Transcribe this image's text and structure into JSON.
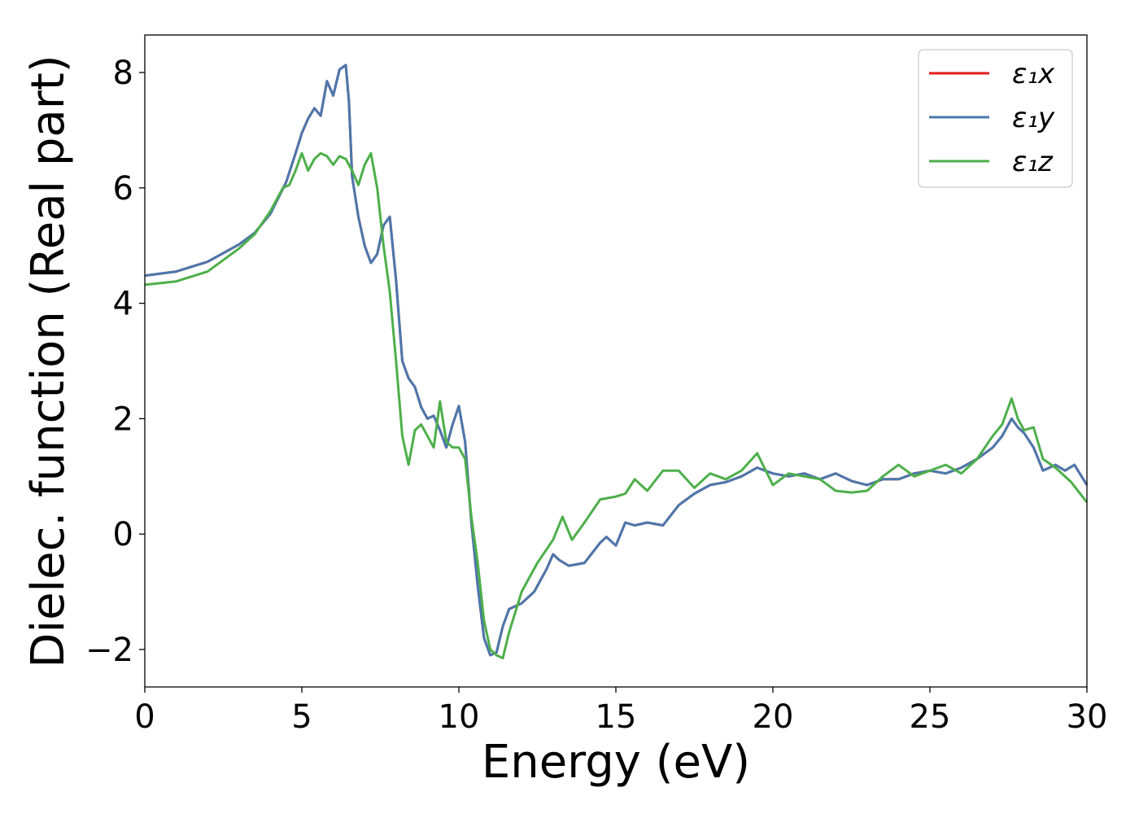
{
  "chart_data": {
    "type": "line",
    "title": "",
    "xlabel": "Energy (eV)",
    "ylabel": "Dielec. function (Real part)",
    "xlim": [
      0,
      30
    ],
    "ylim": [
      -2.65,
      8.65
    ],
    "xticks": [
      0,
      5,
      10,
      15,
      20,
      25,
      30
    ],
    "xtick_labels": [
      "0",
      "5",
      "10",
      "15",
      "20",
      "25",
      "30"
    ],
    "yticks": [
      -2,
      0,
      2,
      4,
      6,
      8
    ],
    "ytick_labels": [
      "−2",
      "0",
      "2",
      "4",
      "6",
      "8"
    ],
    "grid": false,
    "legend_position": "top-right",
    "series": [
      {
        "name": "ε₁x",
        "color": "#e41a1c",
        "x": [
          0,
          1,
          2,
          3,
          3.5,
          4,
          4.5,
          4.8,
          5,
          5.2,
          5.4,
          5.6,
          5.8,
          6.0,
          6.2,
          6.4,
          6.5,
          6.6,
          6.8,
          7.0,
          7.2,
          7.4,
          7.6,
          7.8,
          8.0,
          8.2,
          8.4,
          8.6,
          8.8,
          9.0,
          9.2,
          9.4,
          9.6,
          9.8,
          10.0,
          10.2,
          10.4,
          10.6,
          10.8,
          11.0,
          11.2,
          11.4,
          11.6,
          11.8,
          12.0,
          12.4,
          12.8,
          13.0,
          13.2,
          13.5,
          14.0,
          14.5,
          14.7,
          15.0,
          15.3,
          15.6,
          16.0,
          16.5,
          17.0,
          17.5,
          18.0,
          18.5,
          19.0,
          19.5,
          20.0,
          20.5,
          21.0,
          21.5,
          22.0,
          22.5,
          23.0,
          23.5,
          24.0,
          24.5,
          25.0,
          25.5,
          26.0,
          26.5,
          27.0,
          27.3,
          27.6,
          27.8,
          28.0,
          28.3,
          28.6,
          29.0,
          29.3,
          29.6,
          30.0
        ],
        "y": [
          4.48,
          4.55,
          4.72,
          5.02,
          5.22,
          5.55,
          6.1,
          6.6,
          6.95,
          7.2,
          7.38,
          7.25,
          7.85,
          7.6,
          8.05,
          8.13,
          7.5,
          6.2,
          5.5,
          5.0,
          4.7,
          4.85,
          5.35,
          5.5,
          4.4,
          3.0,
          2.7,
          2.55,
          2.2,
          2.0,
          2.05,
          1.8,
          1.5,
          1.9,
          2.22,
          1.6,
          0.2,
          -0.9,
          -1.8,
          -2.1,
          -2.05,
          -1.6,
          -1.3,
          -1.25,
          -1.2,
          -1.0,
          -0.6,
          -0.35,
          -0.45,
          -0.55,
          -0.5,
          -0.15,
          -0.05,
          -0.2,
          0.2,
          0.15,
          0.2,
          0.15,
          0.5,
          0.7,
          0.85,
          0.9,
          1.0,
          1.15,
          1.05,
          1.0,
          1.05,
          0.95,
          1.05,
          0.92,
          0.85,
          0.95,
          0.95,
          1.05,
          1.1,
          1.05,
          1.15,
          1.3,
          1.5,
          1.7,
          2.0,
          1.85,
          1.75,
          1.5,
          1.1,
          1.2,
          1.1,
          1.2,
          0.85
        ]
      },
      {
        "name": "ε₁y",
        "color": "#4a78ad",
        "x": [
          0,
          1,
          2,
          3,
          3.5,
          4,
          4.5,
          4.8,
          5,
          5.2,
          5.4,
          5.6,
          5.8,
          6.0,
          6.2,
          6.4,
          6.5,
          6.6,
          6.8,
          7.0,
          7.2,
          7.4,
          7.6,
          7.8,
          8.0,
          8.2,
          8.4,
          8.6,
          8.8,
          9.0,
          9.2,
          9.4,
          9.6,
          9.8,
          10.0,
          10.2,
          10.4,
          10.6,
          10.8,
          11.0,
          11.2,
          11.4,
          11.6,
          11.8,
          12.0,
          12.4,
          12.8,
          13.0,
          13.2,
          13.5,
          14.0,
          14.5,
          14.7,
          15.0,
          15.3,
          15.6,
          16.0,
          16.5,
          17.0,
          17.5,
          18.0,
          18.5,
          19.0,
          19.5,
          20.0,
          20.5,
          21.0,
          21.5,
          22.0,
          22.5,
          23.0,
          23.5,
          24.0,
          24.5,
          25.0,
          25.5,
          26.0,
          26.5,
          27.0,
          27.3,
          27.6,
          27.8,
          28.0,
          28.3,
          28.6,
          29.0,
          29.3,
          29.6,
          30.0
        ],
        "y": [
          4.48,
          4.55,
          4.72,
          5.02,
          5.22,
          5.55,
          6.1,
          6.6,
          6.95,
          7.2,
          7.38,
          7.25,
          7.85,
          7.6,
          8.05,
          8.13,
          7.5,
          6.2,
          5.5,
          5.0,
          4.7,
          4.85,
          5.35,
          5.5,
          4.4,
          3.0,
          2.7,
          2.55,
          2.2,
          2.0,
          2.05,
          1.8,
          1.5,
          1.9,
          2.22,
          1.6,
          0.2,
          -0.9,
          -1.8,
          -2.1,
          -2.05,
          -1.6,
          -1.3,
          -1.25,
          -1.2,
          -1.0,
          -0.6,
          -0.35,
          -0.45,
          -0.55,
          -0.5,
          -0.15,
          -0.05,
          -0.2,
          0.2,
          0.15,
          0.2,
          0.15,
          0.5,
          0.7,
          0.85,
          0.9,
          1.0,
          1.15,
          1.05,
          1.0,
          1.05,
          0.95,
          1.05,
          0.92,
          0.85,
          0.95,
          0.95,
          1.05,
          1.1,
          1.05,
          1.15,
          1.3,
          1.5,
          1.7,
          2.0,
          1.85,
          1.75,
          1.5,
          1.1,
          1.2,
          1.1,
          1.2,
          0.85
        ]
      },
      {
        "name": "ε₁z",
        "color": "#4daf4a",
        "x": [
          0,
          1,
          2,
          3,
          3.5,
          4,
          4.4,
          4.6,
          4.8,
          5.0,
          5.2,
          5.4,
          5.6,
          5.8,
          6.0,
          6.2,
          6.4,
          6.6,
          6.8,
          7.0,
          7.2,
          7.4,
          7.6,
          7.8,
          8.0,
          8.2,
          8.4,
          8.6,
          8.8,
          9.0,
          9.2,
          9.4,
          9.6,
          9.8,
          10.0,
          10.2,
          10.4,
          10.6,
          10.8,
          11.0,
          11.2,
          11.4,
          11.6,
          12.0,
          12.5,
          13.0,
          13.3,
          13.6,
          14.0,
          14.5,
          15.0,
          15.3,
          15.6,
          16.0,
          16.5,
          17.0,
          17.5,
          18.0,
          18.5,
          19.0,
          19.5,
          20.0,
          20.5,
          21.0,
          21.5,
          22.0,
          22.5,
          23.0,
          23.5,
          24.0,
          24.5,
          25.0,
          25.5,
          26.0,
          26.5,
          27.0,
          27.3,
          27.6,
          27.8,
          28.0,
          28.3,
          28.6,
          29.0,
          29.5,
          30.0
        ],
        "y": [
          4.32,
          4.38,
          4.55,
          4.95,
          5.2,
          5.6,
          6.0,
          6.05,
          6.3,
          6.6,
          6.3,
          6.5,
          6.6,
          6.55,
          6.4,
          6.55,
          6.5,
          6.3,
          6.05,
          6.4,
          6.6,
          6.0,
          5.0,
          4.2,
          3.0,
          1.7,
          1.2,
          1.8,
          1.9,
          1.7,
          1.5,
          2.3,
          1.6,
          1.5,
          1.5,
          1.3,
          0.3,
          -0.5,
          -1.5,
          -2.0,
          -2.1,
          -2.15,
          -1.7,
          -1.0,
          -0.5,
          -0.1,
          0.3,
          -0.1,
          0.2,
          0.6,
          0.65,
          0.7,
          0.95,
          0.75,
          1.1,
          1.1,
          0.8,
          1.05,
          0.95,
          1.1,
          1.4,
          0.85,
          1.05,
          1.0,
          0.95,
          0.75,
          0.72,
          0.75,
          1.0,
          1.2,
          1.0,
          1.1,
          1.2,
          1.05,
          1.3,
          1.7,
          1.9,
          2.35,
          2.0,
          1.8,
          1.85,
          1.3,
          1.15,
          0.9,
          0.55
        ]
      }
    ]
  }
}
